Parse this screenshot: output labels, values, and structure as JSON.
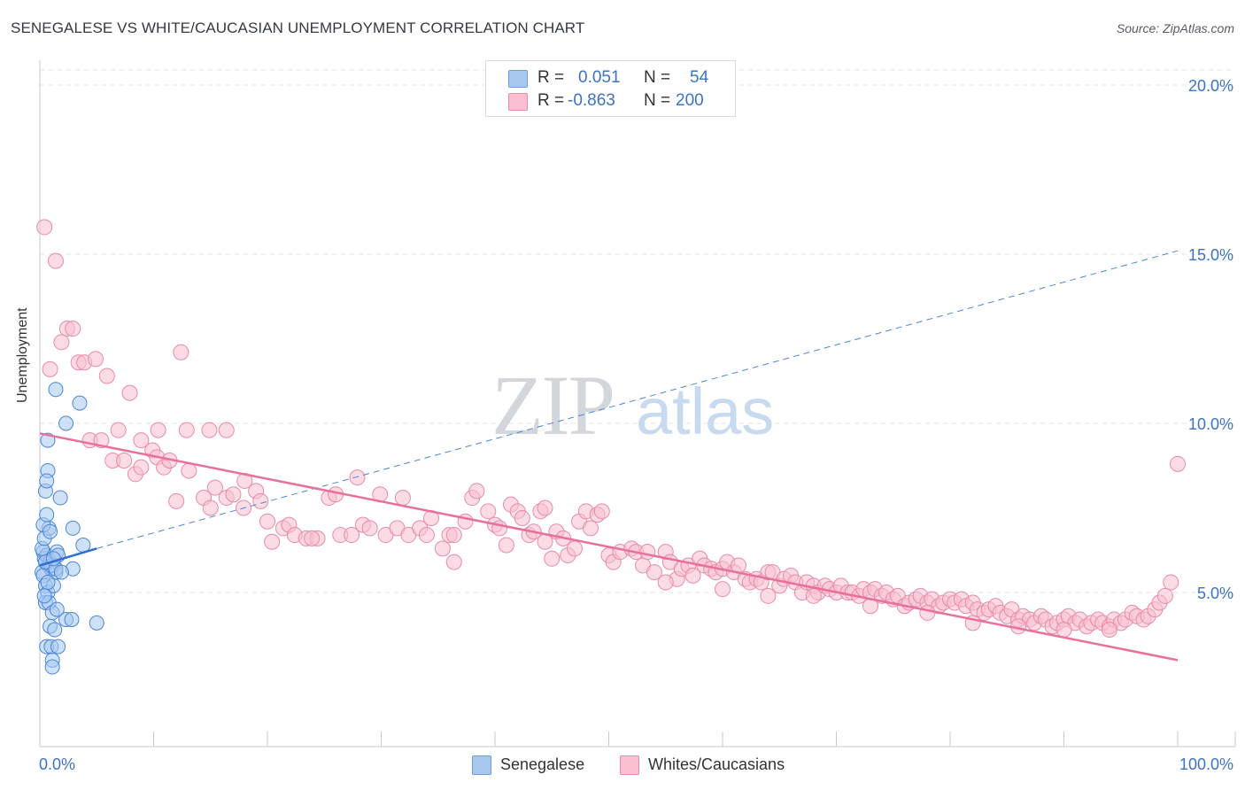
{
  "title": "SENEGALESE VS WHITE/CAUCASIAN UNEMPLOYMENT CORRELATION CHART",
  "source": "Source: ZipAtlas.com",
  "watermark": {
    "zip": "ZIP",
    "atlas": "atlas"
  },
  "legend": {
    "rows": [
      {
        "r_label": "R =",
        "r_value": "0.051",
        "n_label": "N =",
        "n_value": "54",
        "color": "#a8c8f0",
        "border": "#6a9fdd"
      },
      {
        "r_label": "R =",
        "r_value": "-0.863",
        "n_label": "N =",
        "n_value": "200",
        "color": "#f8c0d0",
        "border": "#e98aa8"
      }
    ]
  },
  "bottom_legend": [
    {
      "label": "Senegalese",
      "color": "#a8c8f0",
      "border": "#6a9fdd"
    },
    {
      "label": "Whites/Caucasians",
      "color": "#f8c0d0",
      "border": "#e98aa8"
    }
  ],
  "chart_data": {
    "type": "scatter",
    "title": "SENEGALESE VS WHITE/CAUCASIAN UNEMPLOYMENT CORRELATION CHART",
    "xlabel": "",
    "ylabel": "Unemployment",
    "xlim": [
      0,
      100
    ],
    "ylim": [
      0,
      20
    ],
    "x_tick_labels": [
      "0.0%",
      "100.0%"
    ],
    "y_ticks": [
      5,
      10,
      15,
      20
    ],
    "y_tick_labels": [
      "5.0%",
      "10.0%",
      "15.0%",
      "20.0%"
    ],
    "grid": "horizontal dashed",
    "legend_position": "top-center",
    "colors": {
      "senegalese": "#4a86d8",
      "whites": "#e8709a"
    },
    "series": [
      {
        "name": "Senegalese",
        "trend": {
          "x": [
            0,
            5
          ],
          "y": [
            5.8,
            6.3
          ],
          "extended": {
            "x": [
              5,
              100
            ],
            "y": [
              6.3,
              15.1
            ]
          }
        },
        "points": [
          [
            0.3,
            6.2
          ],
          [
            0.5,
            5.9
          ],
          [
            0.2,
            5.6
          ],
          [
            0.8,
            5.8
          ],
          [
            0.4,
            6.0
          ],
          [
            1.0,
            5.7
          ],
          [
            0.6,
            6.1
          ],
          [
            0.3,
            5.5
          ],
          [
            0.9,
            5.9
          ],
          [
            0.2,
            6.3
          ],
          [
            0.5,
            5.2
          ],
          [
            0.7,
            5.0
          ],
          [
            1.2,
            5.8
          ],
          [
            0.4,
            6.6
          ],
          [
            0.8,
            6.9
          ],
          [
            0.3,
            7.0
          ],
          [
            0.6,
            7.3
          ],
          [
            0.5,
            8.0
          ],
          [
            0.7,
            8.6
          ],
          [
            0.6,
            8.3
          ],
          [
            0.7,
            9.5
          ],
          [
            1.4,
            11.0
          ],
          [
            2.3,
            10.0
          ],
          [
            3.5,
            10.6
          ],
          [
            1.8,
            7.8
          ],
          [
            1.4,
            5.6
          ],
          [
            1.0,
            5.8
          ],
          [
            1.5,
            6.2
          ],
          [
            0.5,
            4.7
          ],
          [
            0.8,
            4.7
          ],
          [
            1.1,
            4.4
          ],
          [
            0.9,
            4.0
          ],
          [
            1.3,
            3.9
          ],
          [
            2.3,
            4.2
          ],
          [
            2.8,
            4.2
          ],
          [
            0.6,
            3.4
          ],
          [
            1.0,
            3.4
          ],
          [
            1.6,
            3.4
          ],
          [
            1.1,
            3.0
          ],
          [
            1.1,
            2.8
          ],
          [
            5.0,
            4.1
          ],
          [
            2.9,
            5.7
          ],
          [
            3.8,
            6.4
          ],
          [
            2.9,
            6.9
          ],
          [
            1.6,
            6.1
          ],
          [
            1.2,
            5.2
          ],
          [
            0.5,
            5.9
          ],
          [
            1.4,
            5.7
          ],
          [
            1.9,
            5.6
          ],
          [
            0.7,
            5.3
          ],
          [
            1.2,
            6.0
          ],
          [
            1.5,
            4.5
          ],
          [
            0.9,
            6.8
          ],
          [
            0.4,
            4.9
          ]
        ]
      },
      {
        "name": "Whites/Caucasians",
        "trend": {
          "x": [
            0,
            100
          ],
          "y": [
            9.7,
            3.0
          ]
        },
        "points": [
          [
            0.4,
            15.8
          ],
          [
            1.4,
            14.8
          ],
          [
            2.4,
            12.8
          ],
          [
            2.9,
            12.8
          ],
          [
            1.9,
            12.4
          ],
          [
            0.9,
            11.6
          ],
          [
            3.4,
            11.8
          ],
          [
            3.9,
            11.8
          ],
          [
            4.9,
            11.9
          ],
          [
            5.9,
            11.4
          ],
          [
            12.4,
            12.1
          ],
          [
            7.9,
            10.9
          ],
          [
            6.9,
            9.8
          ],
          [
            8.9,
            9.5
          ],
          [
            10.4,
            9.8
          ],
          [
            12.9,
            9.8
          ],
          [
            14.9,
            9.8
          ],
          [
            16.4,
            9.8
          ],
          [
            4.4,
            9.5
          ],
          [
            5.4,
            9.5
          ],
          [
            9.9,
            9.2
          ],
          [
            10.3,
            9.0
          ],
          [
            6.4,
            8.9
          ],
          [
            7.4,
            8.9
          ],
          [
            8.4,
            8.5
          ],
          [
            8.9,
            8.7
          ],
          [
            10.9,
            8.7
          ],
          [
            13.1,
            8.6
          ],
          [
            11.4,
            8.9
          ],
          [
            12.0,
            7.7
          ],
          [
            14.4,
            7.8
          ],
          [
            15.4,
            8.1
          ],
          [
            16.4,
            7.8
          ],
          [
            17.0,
            7.9
          ],
          [
            18.0,
            8.3
          ],
          [
            19.0,
            8.0
          ],
          [
            19.4,
            7.7
          ],
          [
            17.9,
            7.5
          ],
          [
            15.0,
            7.5
          ],
          [
            20.0,
            7.1
          ],
          [
            20.4,
            6.5
          ],
          [
            21.4,
            6.9
          ],
          [
            21.9,
            7.0
          ],
          [
            22.4,
            6.7
          ],
          [
            23.4,
            6.6
          ],
          [
            24.4,
            6.6
          ],
          [
            25.4,
            7.8
          ],
          [
            23.9,
            6.6
          ],
          [
            26.0,
            7.9
          ],
          [
            26.4,
            6.7
          ],
          [
            27.4,
            6.7
          ],
          [
            27.9,
            8.4
          ],
          [
            28.4,
            7.0
          ],
          [
            29.0,
            6.9
          ],
          [
            29.9,
            7.9
          ],
          [
            30.4,
            6.7
          ],
          [
            31.4,
            6.9
          ],
          [
            31.9,
            7.8
          ],
          [
            32.4,
            6.7
          ],
          [
            33.4,
            6.9
          ],
          [
            34.0,
            6.7
          ],
          [
            34.4,
            7.2
          ],
          [
            35.4,
            6.3
          ],
          [
            36.0,
            6.7
          ],
          [
            36.4,
            5.9
          ],
          [
            36.4,
            6.7
          ],
          [
            37.4,
            7.1
          ],
          [
            38.0,
            7.8
          ],
          [
            38.4,
            8.0
          ],
          [
            39.4,
            7.4
          ],
          [
            40.0,
            7.0
          ],
          [
            40.4,
            6.9
          ],
          [
            41.0,
            6.4
          ],
          [
            41.4,
            7.6
          ],
          [
            42.0,
            7.4
          ],
          [
            42.4,
            7.2
          ],
          [
            43.0,
            6.7
          ],
          [
            43.4,
            6.8
          ],
          [
            44.0,
            7.4
          ],
          [
            44.4,
            7.5
          ],
          [
            44.4,
            6.5
          ],
          [
            45.4,
            6.8
          ],
          [
            46.0,
            6.6
          ],
          [
            46.4,
            6.1
          ],
          [
            47.0,
            6.3
          ],
          [
            47.4,
            7.1
          ],
          [
            48.0,
            7.4
          ],
          [
            48.4,
            6.9
          ],
          [
            49.0,
            7.3
          ],
          [
            49.4,
            7.4
          ],
          [
            50.0,
            6.1
          ],
          [
            50.4,
            5.9
          ],
          [
            51.0,
            6.2
          ],
          [
            52.0,
            6.3
          ],
          [
            52.4,
            6.2
          ],
          [
            53.0,
            5.8
          ],
          [
            53.4,
            6.2
          ],
          [
            54.0,
            5.6
          ],
          [
            55.0,
            6.2
          ],
          [
            55.4,
            5.9
          ],
          [
            56.0,
            5.4
          ],
          [
            56.4,
            5.7
          ],
          [
            57.0,
            5.8
          ],
          [
            57.4,
            5.5
          ],
          [
            58.0,
            6.0
          ],
          [
            58.4,
            5.8
          ],
          [
            59.0,
            5.7
          ],
          [
            59.4,
            5.6
          ],
          [
            60.0,
            5.7
          ],
          [
            60.4,
            5.9
          ],
          [
            61.0,
            5.6
          ],
          [
            61.4,
            5.8
          ],
          [
            62.0,
            5.4
          ],
          [
            62.4,
            5.3
          ],
          [
            63.0,
            5.4
          ],
          [
            63.4,
            5.3
          ],
          [
            64.0,
            5.6
          ],
          [
            64.4,
            5.6
          ],
          [
            65.0,
            5.2
          ],
          [
            65.4,
            5.4
          ],
          [
            66.0,
            5.5
          ],
          [
            66.4,
            5.3
          ],
          [
            67.0,
            5.0
          ],
          [
            67.4,
            5.3
          ],
          [
            68.0,
            5.2
          ],
          [
            68.4,
            5.0
          ],
          [
            69.0,
            5.2
          ],
          [
            69.4,
            5.1
          ],
          [
            70.0,
            5.0
          ],
          [
            70.4,
            5.2
          ],
          [
            71.0,
            5.0
          ],
          [
            71.4,
            5.0
          ],
          [
            72.0,
            4.9
          ],
          [
            72.4,
            5.1
          ],
          [
            73.0,
            5.0
          ],
          [
            73.4,
            5.1
          ],
          [
            74.0,
            4.9
          ],
          [
            74.4,
            5.0
          ],
          [
            75.0,
            4.8
          ],
          [
            75.4,
            4.9
          ],
          [
            76.0,
            4.6
          ],
          [
            76.4,
            4.7
          ],
          [
            77.0,
            4.8
          ],
          [
            77.4,
            4.9
          ],
          [
            78.0,
            4.7
          ],
          [
            78.4,
            4.8
          ],
          [
            79.0,
            4.6
          ],
          [
            79.4,
            4.7
          ],
          [
            80.0,
            4.8
          ],
          [
            80.4,
            4.7
          ],
          [
            81.0,
            4.8
          ],
          [
            81.4,
            4.6
          ],
          [
            82.0,
            4.7
          ],
          [
            82.4,
            4.5
          ],
          [
            83.0,
            4.4
          ],
          [
            83.4,
            4.5
          ],
          [
            84.0,
            4.6
          ],
          [
            84.4,
            4.4
          ],
          [
            85.0,
            4.3
          ],
          [
            85.4,
            4.5
          ],
          [
            86.0,
            4.2
          ],
          [
            86.4,
            4.3
          ],
          [
            87.0,
            4.2
          ],
          [
            87.4,
            4.1
          ],
          [
            88.0,
            4.3
          ],
          [
            88.4,
            4.2
          ],
          [
            89.0,
            4.0
          ],
          [
            89.4,
            4.1
          ],
          [
            90.0,
            4.2
          ],
          [
            90.4,
            4.3
          ],
          [
            91.0,
            4.1
          ],
          [
            91.4,
            4.2
          ],
          [
            92.0,
            4.0
          ],
          [
            92.4,
            4.1
          ],
          [
            93.0,
            4.2
          ],
          [
            93.4,
            4.1
          ],
          [
            94.0,
            4.0
          ],
          [
            94.4,
            4.2
          ],
          [
            95.0,
            4.1
          ],
          [
            95.4,
            4.2
          ],
          [
            96.0,
            4.4
          ],
          [
            96.4,
            4.3
          ],
          [
            97.0,
            4.2
          ],
          [
            97.4,
            4.3
          ],
          [
            98.0,
            4.5
          ],
          [
            98.4,
            4.7
          ],
          [
            98.9,
            4.9
          ],
          [
            99.4,
            5.3
          ],
          [
            100.0,
            8.8
          ],
          [
            68.0,
            4.9
          ],
          [
            73.0,
            4.6
          ],
          [
            78.0,
            4.4
          ],
          [
            82.0,
            4.1
          ],
          [
            86.0,
            4.0
          ],
          [
            90.0,
            3.9
          ],
          [
            94.0,
            3.9
          ],
          [
            60.0,
            5.1
          ],
          [
            64.0,
            4.9
          ],
          [
            55.0,
            5.3
          ],
          [
            45.0,
            6.0
          ]
        ]
      }
    ]
  }
}
